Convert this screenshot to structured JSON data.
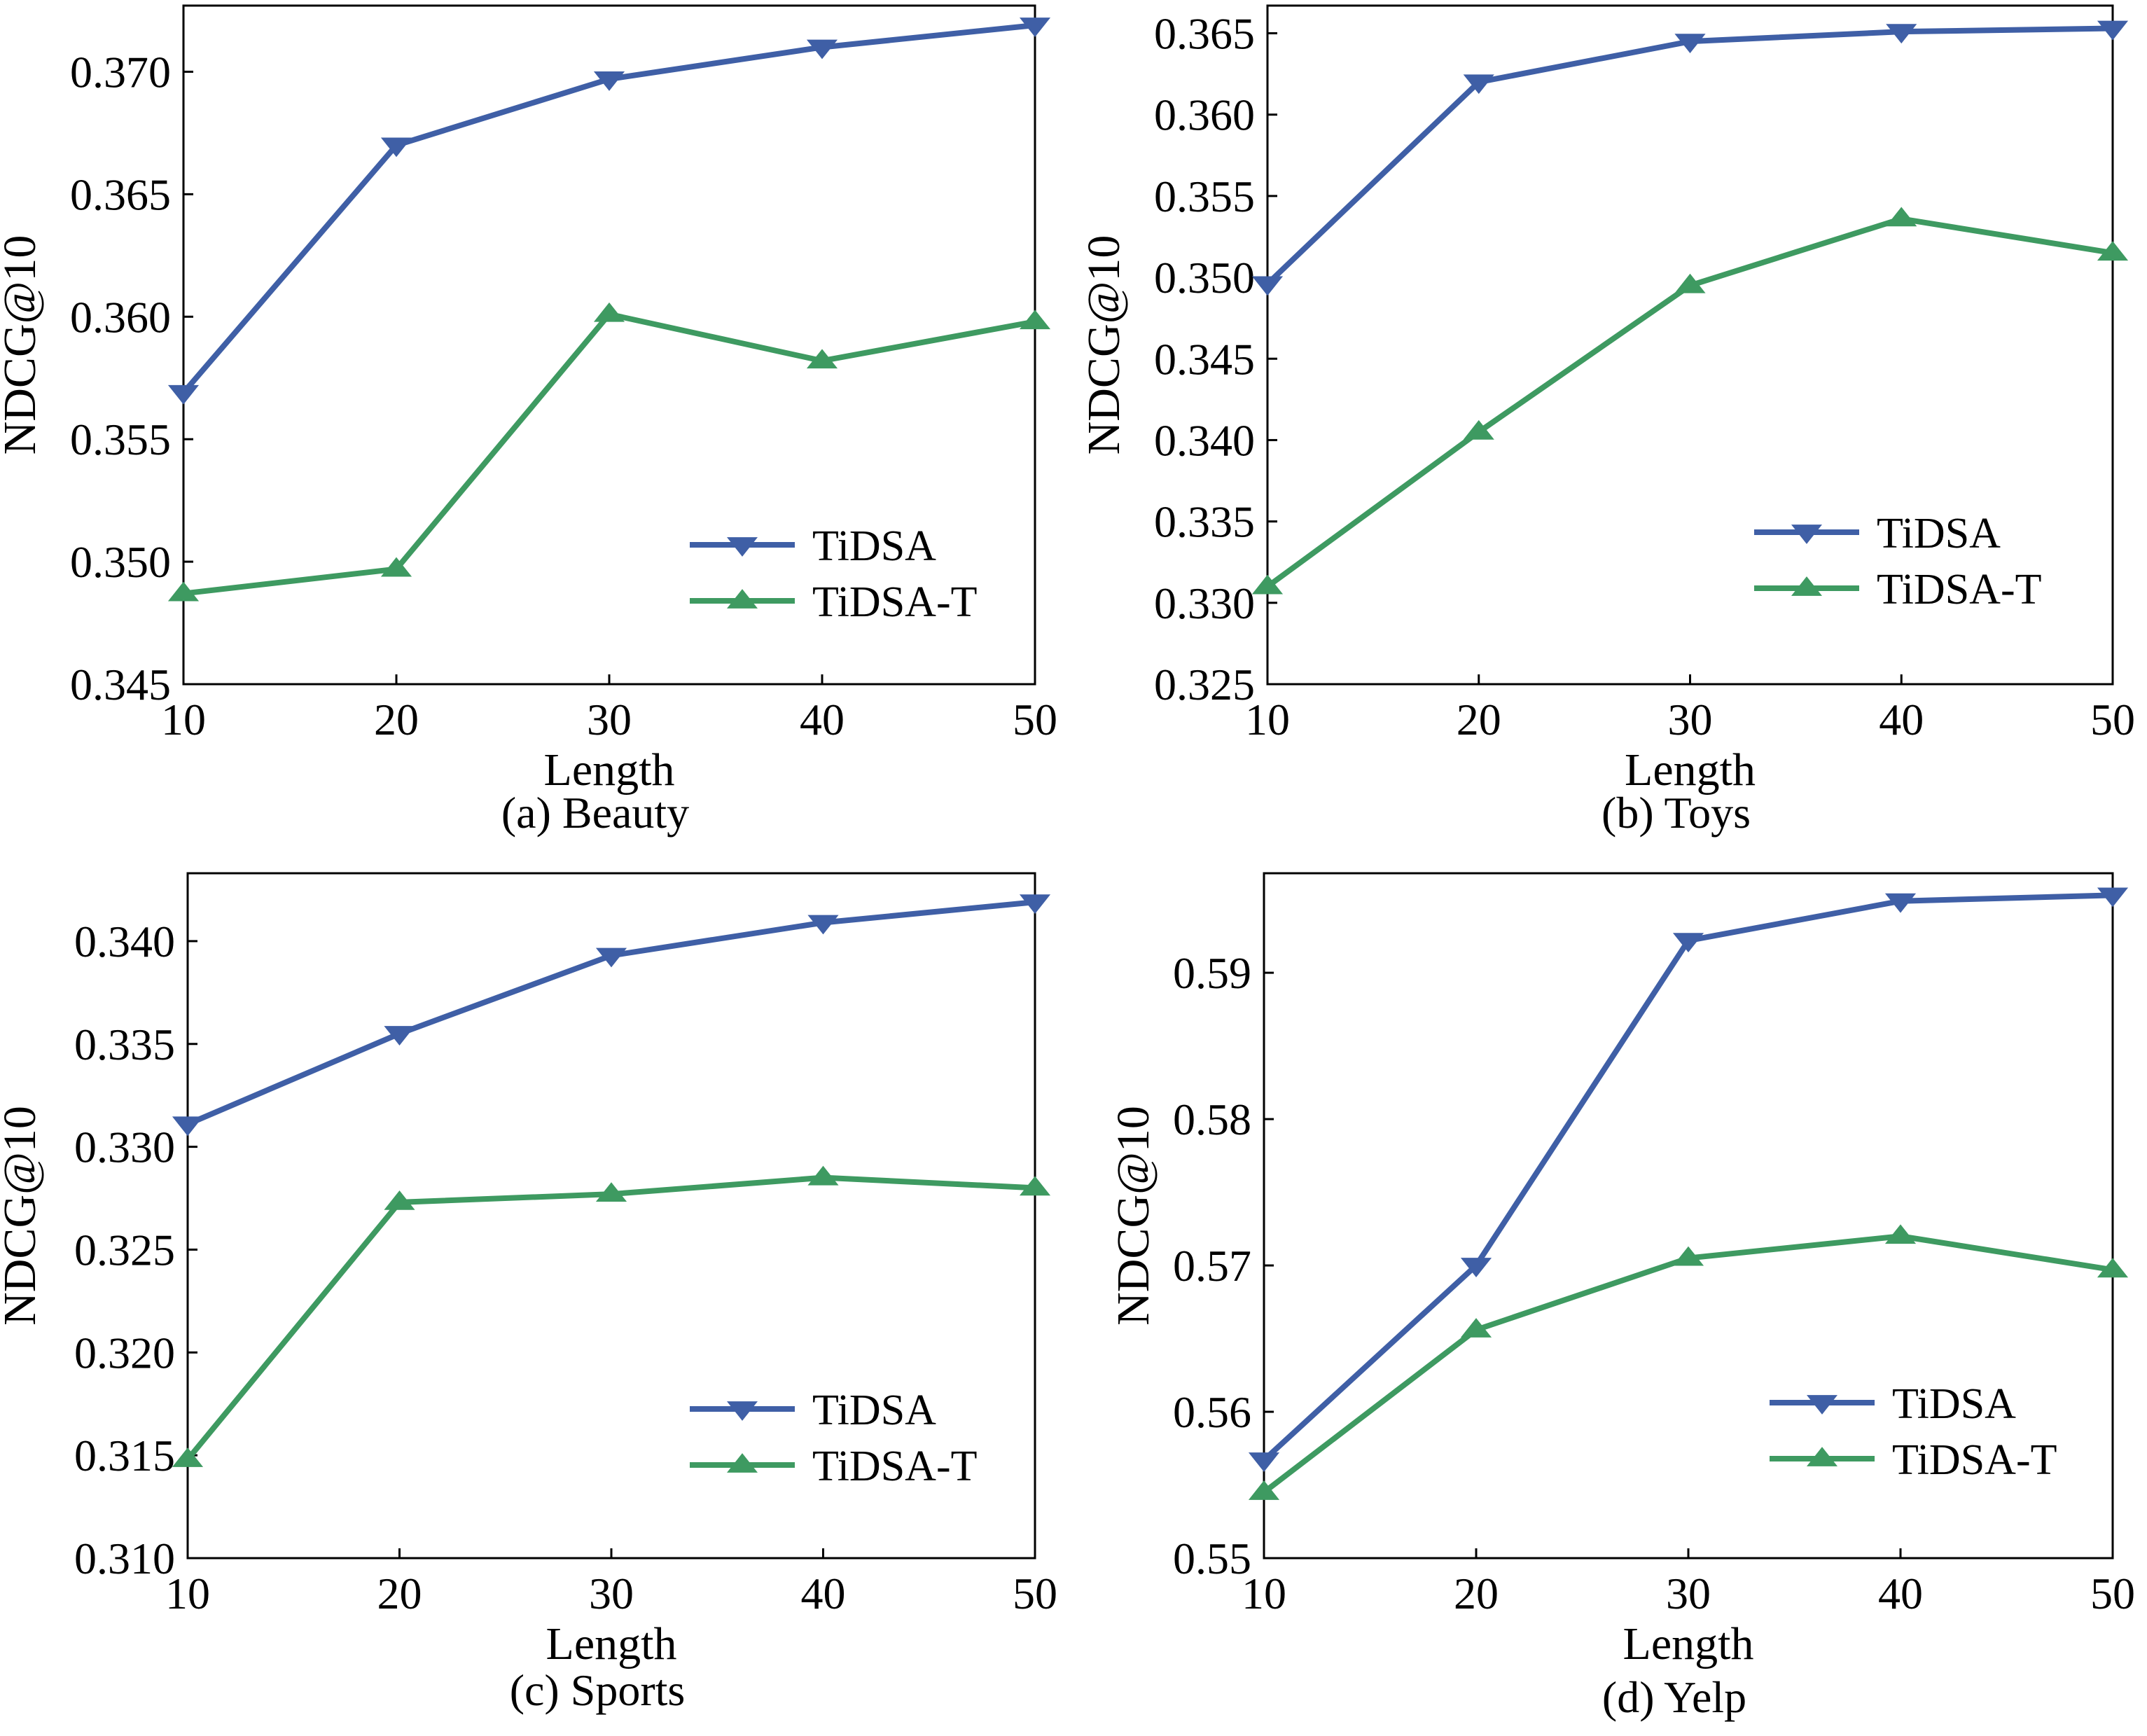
{
  "figure": {
    "description_free": true
  },
  "colors": {
    "tidsa": "#3f5fa6",
    "tidsa_t": "#3e9a61",
    "axis": "#000000"
  },
  "chart_data": [
    {
      "id": "a",
      "type": "line",
      "caption": "(a) Beauty",
      "xlabel": "Length",
      "ylabel": "NDCG@10",
      "x": [
        10,
        20,
        30,
        40,
        50
      ],
      "xticks": [
        "10",
        "20",
        "30",
        "40",
        "50"
      ],
      "xlim": [
        10,
        50
      ],
      "ylim": [
        0.345,
        0.3727
      ],
      "yticks": [
        0.345,
        0.35,
        0.355,
        0.36,
        0.365,
        0.37
      ],
      "ytick_labels": [
        "0.345",
        "0.350",
        "0.355",
        "0.360",
        "0.365",
        "0.370"
      ],
      "legend_position": "bottom-right",
      "series": [
        {
          "name": "TiDSA",
          "marker": "triangle-down",
          "color": "#3f5fa6",
          "values": [
            0.3569,
            0.367,
            0.3697,
            0.371,
            0.3719
          ]
        },
        {
          "name": "TiDSA-T",
          "marker": "triangle-up",
          "color": "#3e9a61",
          "values": [
            0.3487,
            0.3497,
            0.3601,
            0.3582,
            0.3598
          ]
        }
      ]
    },
    {
      "id": "b",
      "type": "line",
      "caption": "(b) Toys",
      "xlabel": "Length",
      "ylabel": "NDCG@10",
      "x": [
        10,
        20,
        30,
        40,
        50
      ],
      "xticks": [
        "10",
        "20",
        "30",
        "40",
        "50"
      ],
      "xlim": [
        10,
        50
      ],
      "ylim": [
        0.325,
        0.3667
      ],
      "yticks": [
        0.325,
        0.33,
        0.335,
        0.34,
        0.345,
        0.35,
        0.355,
        0.36,
        0.365
      ],
      "ytick_labels": [
        "0.325",
        "0.330",
        "0.335",
        "0.340",
        "0.345",
        "0.350",
        "0.355",
        "0.360",
        "0.365"
      ],
      "legend_position": "bottom-right",
      "series": [
        {
          "name": "TiDSA",
          "marker": "triangle-down",
          "color": "#3f5fa6",
          "values": [
            0.3496,
            0.362,
            0.3645,
            0.3651,
            0.3653
          ]
        },
        {
          "name": "TiDSA-T",
          "marker": "triangle-up",
          "color": "#3e9a61",
          "values": [
            0.331,
            0.3405,
            0.3495,
            0.3536,
            0.3515
          ]
        }
      ]
    },
    {
      "id": "c",
      "type": "line",
      "caption": "(c) Sports",
      "xlabel": "Length",
      "ylabel": "NDCG@10",
      "x": [
        10,
        20,
        30,
        40,
        50
      ],
      "xticks": [
        "10",
        "20",
        "30",
        "40",
        "50"
      ],
      "xlim": [
        10,
        50
      ],
      "ylim": [
        0.31,
        0.3433
      ],
      "yticks": [
        0.31,
        0.315,
        0.32,
        0.325,
        0.33,
        0.335,
        0.34
      ],
      "ytick_labels": [
        "0.310",
        "0.315",
        "0.320",
        "0.325",
        "0.330",
        "0.335",
        "0.340"
      ],
      "legend_position": "bottom-right",
      "series": [
        {
          "name": "TiDSA",
          "marker": "triangle-down",
          "color": "#3f5fa6",
          "values": [
            0.3311,
            0.3355,
            0.3393,
            0.3409,
            0.3419
          ]
        },
        {
          "name": "TiDSA-T",
          "marker": "triangle-up",
          "color": "#3e9a61",
          "values": [
            0.3148,
            0.3273,
            0.3277,
            0.3285,
            0.328
          ]
        }
      ]
    },
    {
      "id": "d",
      "type": "line",
      "caption": "(d) Yelp",
      "xlabel": "Length",
      "ylabel": "NDCG@10",
      "x": [
        10,
        20,
        30,
        40,
        50
      ],
      "xticks": [
        "10",
        "20",
        "30",
        "40",
        "50"
      ],
      "xlim": [
        10,
        50
      ],
      "ylim": [
        0.55,
        0.5968
      ],
      "yticks": [
        0.55,
        0.56,
        0.57,
        0.58,
        0.59
      ],
      "ytick_labels": [
        "0.55",
        "0.56",
        "0.57",
        "0.58",
        "0.59"
      ],
      "legend_position": "bottom-right",
      "series": [
        {
          "name": "TiDSA",
          "marker": "triangle-down",
          "color": "#3f5fa6",
          "values": [
            0.5567,
            0.57,
            0.5922,
            0.5949,
            0.5953
          ]
        },
        {
          "name": "TiDSA-T",
          "marker": "triangle-up",
          "color": "#3e9a61",
          "values": [
            0.5545,
            0.5656,
            0.5705,
            0.572,
            0.5697
          ]
        }
      ]
    }
  ]
}
